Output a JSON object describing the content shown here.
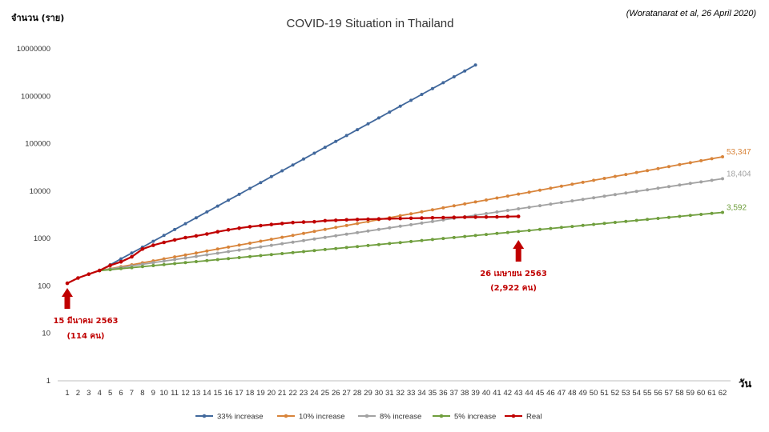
{
  "chart_data": {
    "type": "line",
    "title": "COVID-19 Situation in Thailand",
    "citation": "(Woratanarat et al, 26 April 2020)",
    "ylabel": "จำนวน (ราย)",
    "xlabel": "วัน",
    "yscale": "log",
    "ylim": [
      1,
      10000000
    ],
    "y_ticks": [
      "1",
      "10",
      "100",
      "1000",
      "10000",
      "100000",
      "1000000",
      "10000000"
    ],
    "xlim": [
      1,
      62
    ],
    "x_ticks": [
      "1",
      "2",
      "3",
      "4",
      "5",
      "6",
      "7",
      "8",
      "9",
      "10",
      "11",
      "12",
      "13",
      "14",
      "15",
      "16",
      "17",
      "18",
      "19",
      "20",
      "21",
      "22",
      "23",
      "24",
      "25",
      "26",
      "27",
      "28",
      "29",
      "30",
      "31",
      "32",
      "33",
      "34",
      "35",
      "36",
      "37",
      "38",
      "39",
      "40",
      "41",
      "42",
      "43",
      "44",
      "45",
      "46",
      "47",
      "48",
      "49",
      "50",
      "51",
      "52",
      "53",
      "54",
      "55",
      "56",
      "57",
      "58",
      "59",
      "60",
      "61",
      "62"
    ],
    "legend_position": "bottom",
    "grid": false,
    "series": [
      {
        "name": "33% increase",
        "color": "#41689c",
        "growth": 0.33,
        "start_day": 4,
        "end_day": 39,
        "start_value": 210,
        "end_label": ""
      },
      {
        "name": "10% increase",
        "color": "#d8843a",
        "growth": 0.1,
        "start_day": 4,
        "end_day": 62,
        "start_value": 210,
        "end_label": "53,347"
      },
      {
        "name": "8% increase",
        "color": "#a2a2a2",
        "growth": 0.08,
        "start_day": 4,
        "end_day": 62,
        "start_value": 210,
        "end_label": "18,404"
      },
      {
        "name": "5% increase",
        "color": "#6f9e3d",
        "growth": 0.05,
        "start_day": 4,
        "end_day": 62,
        "start_value": 210,
        "end_label": "3,592"
      },
      {
        "name": "Real",
        "color": "#c00000",
        "x": [
          1,
          2,
          3,
          4,
          5,
          6,
          7,
          8,
          9,
          10,
          11,
          12,
          13,
          14,
          15,
          16,
          17,
          18,
          19,
          20,
          21,
          22,
          23,
          24,
          25,
          26,
          27,
          28,
          29,
          30,
          31,
          32,
          33,
          34,
          35,
          36,
          37,
          38,
          39,
          40,
          41,
          42,
          43
        ],
        "values": [
          114,
          147,
          177,
          212,
          272,
          322,
          411,
          599,
          721,
          827,
          934,
          1045,
          1136,
          1245,
          1388,
          1524,
          1651,
          1771,
          1875,
          1978,
          2067,
          2169,
          2220,
          2258,
          2369,
          2423,
          2473,
          2518,
          2551,
          2579,
          2613,
          2643,
          2672,
          2700,
          2733,
          2765,
          2792,
          2811,
          2826,
          2839,
          2854,
          2907,
          2922
        ],
        "end_label": ""
      }
    ],
    "annotations": [
      {
        "day": 1,
        "line1": "15 มีนาคม 2563",
        "line2": "(114 คน)"
      },
      {
        "day": 43,
        "line1": "26 เมษายน 2563",
        "line2": "(2,922 คน)"
      }
    ]
  }
}
